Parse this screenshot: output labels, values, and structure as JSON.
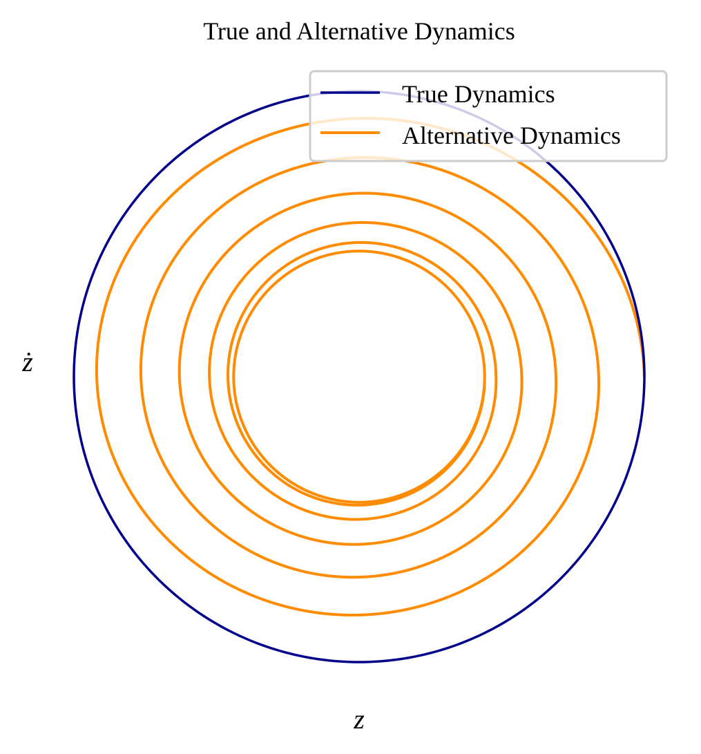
{
  "chart_data": {
    "type": "line",
    "title": "True and Alternative Dynamics",
    "xlabel": "z",
    "ylabel": "ż",
    "xlim": [
      -1.05,
      1.05
    ],
    "ylim": [
      -1.05,
      1.05
    ],
    "grid": false,
    "axes_visible": false,
    "legend_position": "top-right",
    "series": [
      {
        "name": "True Dynamics",
        "color": "#00008b",
        "kind": "ellipse",
        "rx": 1.0,
        "ry": 1.0
      },
      {
        "name": "Alternative Dynamics",
        "color": "#ff8c00",
        "kind": "decaying-spiral",
        "turn_radii_x": [
          1.0,
          0.84,
          0.69,
          0.57,
          0.48,
          0.44
        ],
        "turn_radii_y": [
          0.94,
          0.8,
          0.67,
          0.56,
          0.48,
          0.44
        ],
        "end_radius": 0.44
      }
    ]
  }
}
